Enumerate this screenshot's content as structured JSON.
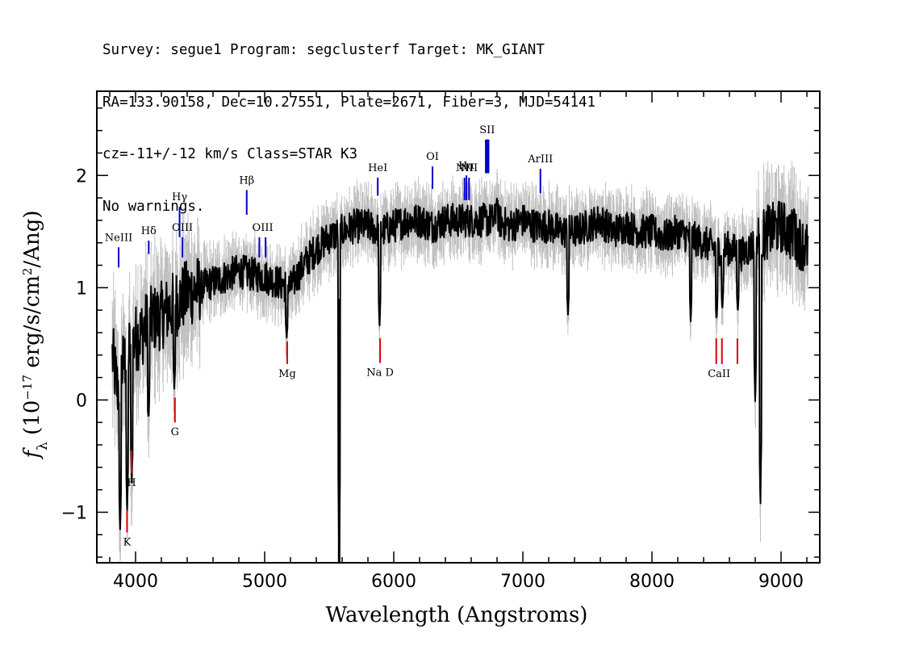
{
  "header": {
    "line1": "Survey: segue1 Program: segclusterf Target: MK_GIANT",
    "line2": "RA=133.90158, Dec=10.27551, Plate=2671, Fiber=3, MJD=54141",
    "line3": "cz=-11+/-12 km/s Class=STAR K3",
    "line4": "No warnings."
  },
  "colors": {
    "flux": "#000000",
    "error": "#c0c0c0",
    "emission": "#0000cc",
    "absorption": "#dd0000",
    "sky": "#000000"
  },
  "chart_data": {
    "type": "line",
    "xlabel": "Wavelength (Angstroms)",
    "ylabel": "f_λ (10^-17 erg/s/cm²/Ang)",
    "xlim": [
      3700,
      9300
    ],
    "ylim": [
      -1.45,
      2.75
    ],
    "xticks": [
      "4000",
      "5000",
      "6000",
      "7000",
      "8000",
      "9000"
    ],
    "yticks": [
      "−1",
      "0",
      "1",
      "2"
    ],
    "x_tick_values": [
      4000,
      5000,
      6000,
      7000,
      8000,
      9000
    ],
    "y_tick_values": [
      -1,
      0,
      1,
      2
    ],
    "grid": false,
    "series": [
      {
        "role": "flux",
        "x": [
          3820,
          3860,
          3900,
          3950,
          4000,
          4050,
          4100,
          4200,
          4300,
          4400,
          4500,
          4600,
          4700,
          4800,
          4900,
          5000,
          5100,
          5200,
          5300,
          5400,
          5500,
          5600,
          5700,
          5800,
          5900,
          6000,
          6100,
          6200,
          6300,
          6400,
          6500,
          6600,
          6700,
          6800,
          6900,
          7000,
          7100,
          7200,
          7300,
          7400,
          7500,
          7600,
          7700,
          7800,
          7900,
          8000,
          8100,
          8200,
          8300,
          8400,
          8500,
          8600,
          8700,
          8800,
          8850,
          8900,
          9000,
          9100,
          9200
        ],
        "y": [
          0.4,
          0.1,
          0.3,
          0.45,
          0.55,
          0.6,
          0.7,
          0.75,
          0.85,
          0.95,
          1.0,
          1.05,
          1.1,
          1.15,
          1.12,
          1.1,
          1.05,
          1.0,
          1.2,
          1.35,
          1.45,
          1.5,
          1.55,
          1.55,
          1.5,
          1.55,
          1.6,
          1.6,
          1.55,
          1.6,
          1.6,
          1.6,
          1.6,
          1.6,
          1.55,
          1.6,
          1.55,
          1.55,
          1.5,
          1.5,
          1.55,
          1.6,
          1.5,
          1.55,
          1.5,
          1.5,
          1.45,
          1.5,
          1.45,
          1.4,
          1.35,
          1.35,
          1.3,
          1.4,
          1.45,
          1.5,
          1.55,
          1.45,
          1.35
        ]
      },
      {
        "role": "flux-features",
        "x": [
          3880,
          3935,
          3970,
          4100,
          4300,
          5170,
          5577,
          5890,
          6800,
          7350,
          8300,
          8500,
          8545,
          8665,
          8800,
          8840,
          9100
        ],
        "y": [
          -1.2,
          -1.0,
          -0.75,
          -0.2,
          0.1,
          0.55,
          -1.45,
          0.65,
          1.8,
          0.75,
          0.7,
          0.7,
          0.8,
          0.8,
          -0.05,
          -1.0,
          1.7
        ]
      }
    ],
    "annotations": [
      {
        "label": "NeIII",
        "x": 3869,
        "kind": "emission"
      },
      {
        "label": "Hδ",
        "x": 4102,
        "kind": "emission"
      },
      {
        "label": "Hγ",
        "x": 4341,
        "kind": "emission"
      },
      {
        "label": "OIII",
        "x": 4363,
        "kind": "emission"
      },
      {
        "label": "Hβ",
        "x": 4861,
        "kind": "emission"
      },
      {
        "label": "OIII",
        "x": 4985,
        "kind": "emission"
      },
      {
        "label": "HeI",
        "x": 5876,
        "kind": "emission"
      },
      {
        "label": "OI",
        "x": 6300,
        "kind": "emission"
      },
      {
        "label": "NII",
        "x": 6548,
        "kind": "emission"
      },
      {
        "label": "Hα",
        "x": 6563,
        "kind": "emission"
      },
      {
        "label": "NII",
        "x": 6583,
        "kind": "emission"
      },
      {
        "label": "SII",
        "x": 6724,
        "kind": "emission"
      },
      {
        "label": "ArIII",
        "x": 7136,
        "kind": "emission"
      },
      {
        "label": "K",
        "x": 3934,
        "kind": "absorption"
      },
      {
        "label": "H",
        "x": 3969,
        "kind": "absorption"
      },
      {
        "label": "G",
        "x": 4305,
        "kind": "absorption"
      },
      {
        "label": "Mg",
        "x": 5175,
        "kind": "absorption"
      },
      {
        "label": "Na D",
        "x": 5894,
        "kind": "absorption"
      },
      {
        "label": "CaII",
        "x": 8542,
        "kind": "absorption"
      }
    ]
  }
}
